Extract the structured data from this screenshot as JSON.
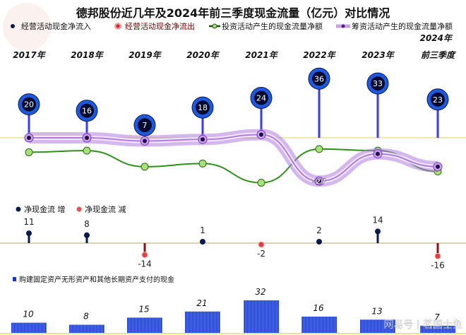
{
  "title": "德邦股份近几年及2024年前三季度现金流量（亿元）对比情况",
  "watermark": "网易号 | 茗国士鱼",
  "colors": {
    "operating_in": "#0a1a4a",
    "operating_out": "#d62828",
    "stem": "#3a3aff",
    "investing_line": "#2f8f1a",
    "investing_dot": "#a8e07a",
    "financing": "#b07be0",
    "zero_line": "#e8e29a",
    "net_pos": "#0b1a4d",
    "net_neg": "#8b1010",
    "bars": "#1a3bbf"
  },
  "chart_data": [
    {
      "type": "line",
      "title": "德邦股份近几年及2024年前三季度现金流量（亿元）对比情况",
      "categories": [
        "2017年",
        "2018年",
        "2019年",
        "2020年",
        "2021年",
        "2022年",
        "2023年",
        "2024年 前三季度"
      ],
      "category_labels": [
        [
          "2017年"
        ],
        [
          "2018年"
        ],
        [
          "2019年"
        ],
        [
          "2020年"
        ],
        [
          "2021年"
        ],
        [
          "2022年"
        ],
        [
          "2023年"
        ],
        [
          "2024年",
          "前三季度"
        ]
      ],
      "legend": [
        "经营活动现金净流入",
        "经营活动现金净流出",
        "投资活动产生的现金流量净额",
        "筹资活动产生的现金流量净额"
      ],
      "legend_position": "top",
      "series": [
        {
          "name": "经营活动现金净流入",
          "values": [
            20,
            16,
            7,
            18,
            24,
            36,
            33,
            23
          ],
          "labeled": true
        },
        {
          "name": "投资活动产生的现金流量净额",
          "values": [
            -9,
            -8,
            -18,
            -16,
            -28,
            -7,
            -8,
            -21
          ],
          "labeled": false
        },
        {
          "name": "筹资活动产生的现金流量净额",
          "values": [
            0,
            0,
            -2,
            -1,
            2,
            -27,
            -10,
            -18
          ],
          "label_2022": "-27"
        }
      ]
    },
    {
      "type": "lollipop",
      "legend": [
        "净现金流 增",
        "净现金流 减"
      ],
      "categories": [
        "2017年",
        "2018年",
        "2019年",
        "2020年",
        "2021年",
        "2022年",
        "2023年",
        "2024年 前三季度"
      ],
      "values": [
        11,
        8,
        -14,
        1,
        -2,
        2,
        14,
        -16
      ]
    },
    {
      "type": "bar",
      "legend": [
        "购建固定资产无形资产和其他长期资产支付的现金"
      ],
      "categories": [
        "2017年",
        "2018年",
        "2019年",
        "2020年",
        "2021年",
        "2022年",
        "2023年",
        "2024年 前三季度"
      ],
      "values": [
        10,
        8,
        15,
        21,
        32,
        16,
        13,
        7
      ]
    }
  ]
}
